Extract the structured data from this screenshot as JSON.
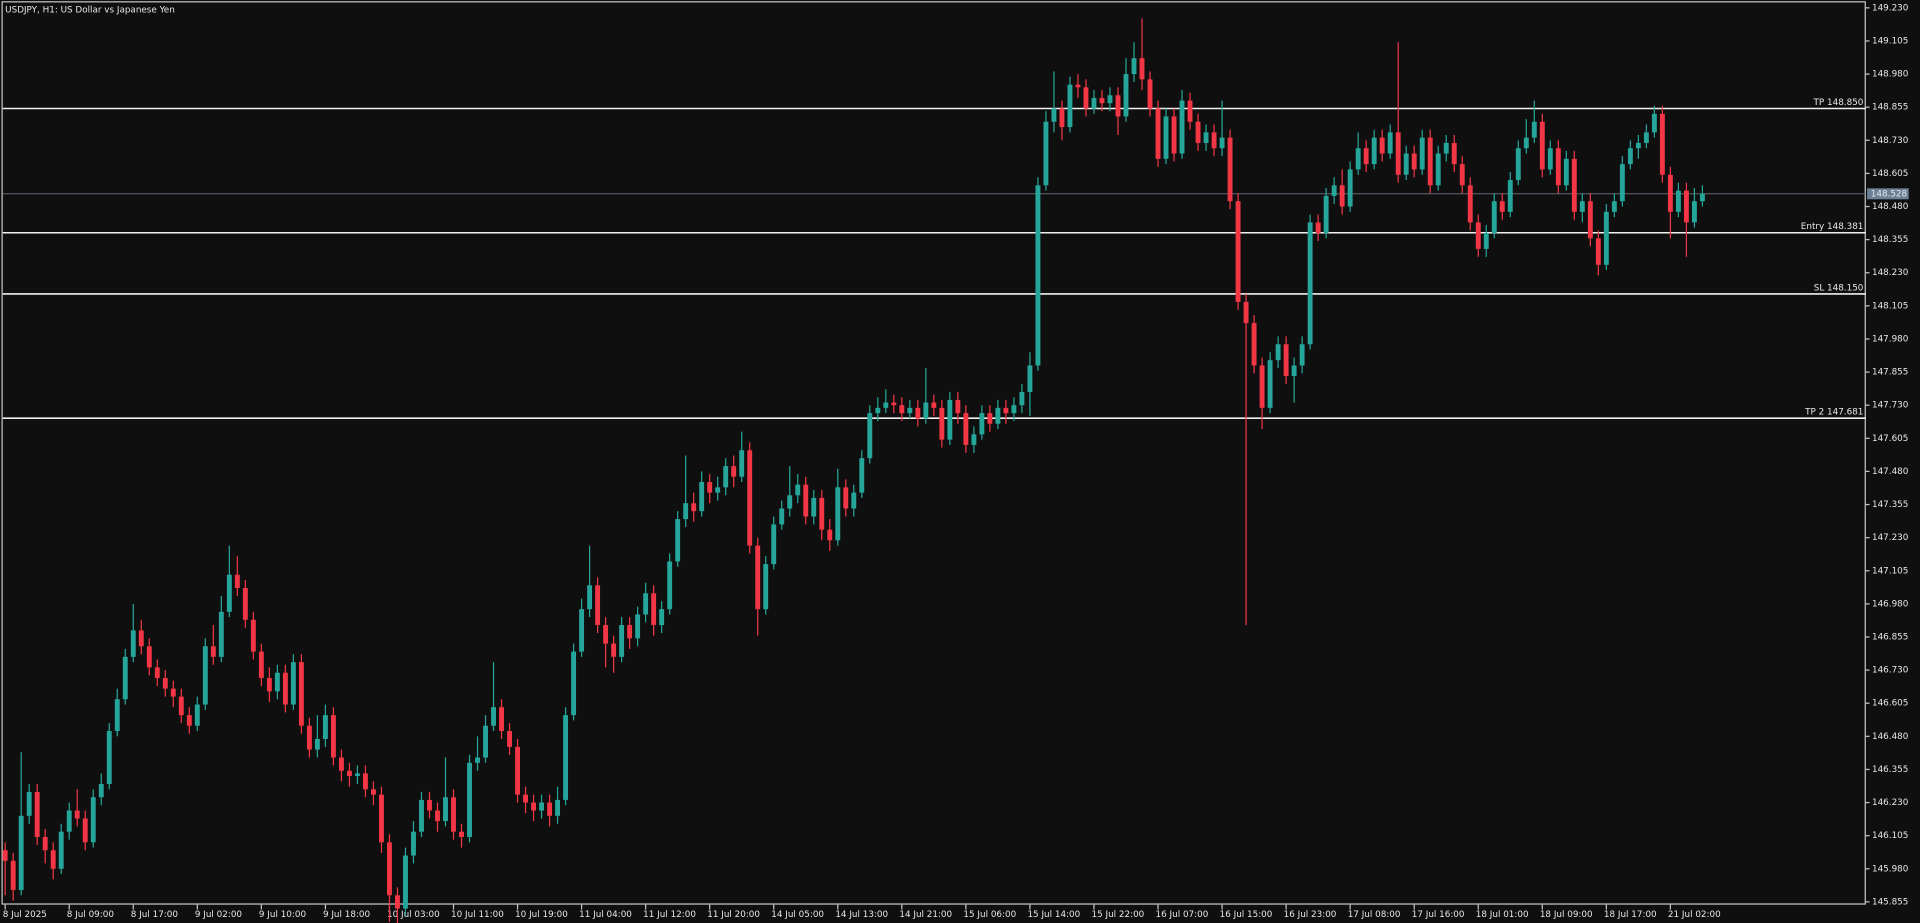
{
  "chart_data": {
    "type": "candlestick",
    "title": "USDJPY, H1:  US Dollar vs Japanese Yen",
    "up_color": "#26a69a",
    "down_color": "#f23645",
    "categories": [
      "8 Jul 2025",
      null,
      null,
      null,
      null,
      null,
      null,
      null,
      "8 Jul 09:00",
      null,
      null,
      null,
      null,
      null,
      null,
      null,
      "8 Jul 17:00",
      null,
      null,
      null,
      null,
      null,
      null,
      null,
      "9 Jul 02:00",
      null,
      null,
      null,
      null,
      null,
      null,
      null,
      "9 Jul 10:00",
      null,
      null,
      null,
      null,
      null,
      null,
      null,
      "9 Jul 18:00",
      null,
      null,
      null,
      null,
      null,
      null,
      null,
      "10 Jul 03:00",
      null,
      null,
      null,
      null,
      null,
      null,
      null,
      "10 Jul 11:00",
      null,
      null,
      null,
      null,
      null,
      null,
      null,
      "10 Jul 19:00",
      null,
      null,
      null,
      null,
      null,
      null,
      null,
      "11 Jul 04:00",
      null,
      null,
      null,
      null,
      null,
      null,
      null,
      "11 Jul 12:00",
      null,
      null,
      null,
      null,
      null,
      null,
      null,
      "11 Jul 20:00",
      null,
      null,
      null,
      null,
      null,
      null,
      null,
      "14 Jul 05:00",
      null,
      null,
      null,
      null,
      null,
      null,
      null,
      "14 Jul 13:00",
      null,
      null,
      null,
      null,
      null,
      null,
      null,
      "14 Jul 21:00",
      null,
      null,
      null,
      null,
      null,
      null,
      null,
      "15 Jul 06:00",
      null,
      null,
      null,
      null,
      null,
      null,
      null,
      "15 Jul 14:00",
      null,
      null,
      null,
      null,
      null,
      null,
      null,
      "15 Jul 22:00",
      null,
      null,
      null,
      null,
      null,
      null,
      null,
      "16 Jul 07:00",
      null,
      null,
      null,
      null,
      null,
      null,
      null,
      "16 Jul 15:00",
      null,
      null,
      null,
      null,
      null,
      null,
      null,
      "16 Jul 23:00",
      null,
      null,
      null,
      null,
      null,
      null,
      null,
      "17 Jul 08:00",
      null,
      null,
      null,
      null,
      null,
      null,
      null,
      "17 Jul 16:00",
      null,
      null,
      null,
      null,
      null,
      null,
      null,
      "18 Jul 01:00",
      null,
      null,
      null,
      null,
      null,
      null,
      null,
      "18 Jul 09:00",
      null,
      null,
      null,
      null,
      null,
      null,
      null,
      "18 Jul 17:00",
      null,
      null,
      null,
      null,
      null,
      null,
      null,
      "21 Jul 02:00",
      null,
      null,
      null,
      null
    ],
    "open": [
      146.05,
      146.01,
      145.9,
      146.18,
      146.27,
      146.1,
      146.05,
      145.98,
      146.12,
      146.2,
      146.17,
      146.08,
      146.25,
      146.3,
      146.5,
      146.62,
      146.78,
      146.88,
      146.82,
      146.74,
      146.7,
      146.66,
      146.63,
      146.56,
      146.52,
      146.6,
      146.82,
      146.78,
      146.95,
      147.09,
      147.04,
      146.92,
      146.8,
      146.7,
      146.65,
      146.72,
      146.6,
      146.76,
      146.52,
      146.43,
      146.47,
      146.56,
      146.4,
      146.35,
      146.33,
      146.34,
      146.28,
      146.26,
      146.08,
      145.88,
      145.83,
      146.03,
      146.12,
      146.24,
      146.2,
      146.16,
      146.25,
      146.12,
      146.1,
      146.38,
      146.4,
      146.52,
      146.59,
      146.5,
      146.44,
      146.26,
      146.23,
      146.2,
      146.23,
      146.18,
      146.24,
      146.56,
      146.8,
      146.96,
      147.05,
      146.9,
      146.83,
      146.78,
      146.9,
      146.85,
      146.94,
      147.02,
      146.9,
      146.96,
      147.14,
      147.3,
      147.36,
      147.33,
      147.44,
      147.4,
      147.42,
      147.5,
      147.46,
      147.56,
      147.2,
      146.96,
      147.13,
      147.28,
      147.34,
      147.39,
      147.43,
      147.31,
      147.38,
      147.26,
      147.22,
      147.42,
      147.34,
      147.4,
      147.53,
      147.7,
      147.72,
      147.74,
      147.73,
      147.7,
      147.72,
      147.68,
      147.74,
      147.72,
      147.6,
      147.75,
      147.7,
      147.58,
      147.62,
      147.7,
      147.66,
      147.72,
      147.7,
      147.73,
      147.78,
      147.88,
      148.56,
      148.8,
      148.85,
      148.78,
      148.94,
      148.93,
      148.85,
      148.89,
      148.87,
      148.9,
      148.82,
      148.98,
      149.04,
      148.96,
      148.85,
      148.66,
      148.82,
      148.68,
      148.88,
      148.8,
      148.72,
      148.76,
      148.7,
      148.74,
      148.5,
      148.12,
      148.04,
      147.88,
      147.72,
      147.9,
      147.96,
      147.84,
      147.88,
      147.96,
      148.42,
      148.38,
      148.52,
      148.56,
      148.48,
      148.62,
      148.7,
      148.64,
      148.74,
      148.68,
      148.76,
      148.6,
      148.68,
      148.62,
      148.74,
      148.56,
      148.68,
      148.72,
      148.64,
      148.56,
      148.42,
      148.32,
      148.38,
      148.5,
      148.46,
      148.58,
      148.7,
      148.74,
      148.8,
      148.62,
      148.7,
      148.56,
      148.66,
      148.46,
      148.5,
      148.36,
      148.26,
      148.46,
      148.5,
      148.64,
      148.7,
      148.72,
      148.76,
      148.83,
      148.6,
      148.46,
      148.54,
      148.42,
      148.5
    ],
    "high": [
      146.08,
      146.04,
      146.42,
      146.3,
      146.3,
      146.13,
      146.08,
      146.15,
      146.23,
      146.28,
      146.2,
      146.28,
      146.34,
      146.53,
      146.66,
      146.81,
      146.98,
      146.92,
      146.85,
      146.77,
      146.73,
      146.69,
      146.66,
      146.59,
      146.63,
      146.85,
      146.9,
      147.01,
      147.2,
      147.16,
      147.07,
      146.95,
      146.83,
      146.74,
      146.75,
      146.75,
      146.79,
      146.79,
      146.55,
      146.56,
      146.6,
      146.59,
      146.43,
      146.38,
      146.37,
      146.37,
      146.31,
      146.29,
      146.11,
      145.91,
      146.06,
      146.16,
      146.27,
      146.27,
      146.23,
      146.4,
      146.28,
      146.15,
      146.41,
      146.48,
      146.56,
      146.76,
      146.62,
      146.53,
      146.47,
      146.29,
      146.26,
      146.26,
      146.26,
      146.29,
      146.59,
      146.83,
      147.0,
      147.2,
      147.08,
      146.93,
      146.86,
      146.93,
      146.93,
      146.97,
      147.06,
      147.05,
      146.99,
      147.17,
      147.33,
      147.54,
      147.4,
      147.48,
      147.47,
      147.46,
      147.53,
      147.54,
      147.63,
      147.59,
      147.23,
      147.16,
      147.31,
      147.37,
      147.5,
      147.47,
      147.46,
      147.41,
      147.41,
      147.3,
      147.49,
      147.45,
      147.43,
      147.56,
      147.73,
      147.76,
      147.79,
      147.77,
      147.76,
      147.75,
      147.75,
      147.87,
      147.77,
      147.75,
      147.78,
      147.78,
      147.73,
      147.65,
      147.73,
      147.73,
      147.75,
      147.75,
      147.76,
      147.81,
      147.93,
      148.59,
      148.84,
      148.99,
      148.88,
      148.97,
      148.98,
      148.96,
      148.92,
      148.92,
      148.93,
      148.93,
      149.04,
      149.1,
      149.19,
      148.99,
      148.88,
      148.85,
      148.85,
      148.92,
      148.91,
      148.83,
      148.79,
      148.79,
      148.88,
      148.77,
      148.53,
      148.15,
      148.07,
      147.91,
      147.93,
      147.99,
      147.99,
      147.91,
      147.99,
      148.45,
      148.45,
      148.55,
      148.59,
      148.62,
      148.65,
      148.76,
      148.73,
      148.77,
      148.77,
      148.79,
      149.1,
      148.71,
      148.71,
      148.77,
      148.77,
      148.71,
      148.75,
      148.75,
      148.67,
      148.59,
      148.45,
      148.41,
      148.53,
      148.53,
      148.61,
      148.73,
      148.81,
      148.88,
      148.83,
      148.73,
      148.73,
      148.69,
      148.69,
      148.53,
      148.53,
      148.39,
      148.49,
      148.53,
      148.67,
      148.73,
      148.75,
      148.79,
      148.86,
      148.86,
      148.63,
      148.57,
      148.57,
      148.55,
      148.56
    ],
    "low": [
      145.88,
      145.86,
      145.88,
      146.15,
      146.07,
      146.0,
      145.94,
      145.96,
      146.09,
      146.14,
      146.05,
      146.06,
      146.22,
      146.28,
      146.48,
      146.6,
      146.76,
      146.79,
      146.71,
      146.67,
      146.63,
      146.59,
      146.53,
      146.49,
      146.5,
      146.58,
      146.75,
      146.76,
      146.93,
      147.01,
      146.89,
      146.77,
      146.67,
      146.61,
      146.62,
      146.57,
      146.58,
      146.49,
      146.4,
      146.4,
      146.44,
      146.37,
      146.31,
      146.29,
      146.3,
      146.25,
      146.22,
      146.04,
      145.78,
      145.77,
      145.8,
      146.0,
      146.1,
      146.17,
      146.12,
      146.14,
      146.09,
      146.06,
      146.08,
      146.35,
      146.38,
      146.5,
      146.47,
      146.41,
      146.23,
      146.19,
      146.16,
      146.17,
      146.14,
      146.15,
      146.22,
      146.54,
      146.78,
      146.93,
      146.87,
      146.74,
      146.72,
      146.76,
      146.81,
      146.82,
      146.91,
      146.86,
      146.87,
      146.94,
      147.12,
      147.27,
      147.29,
      147.31,
      147.36,
      147.37,
      147.39,
      147.42,
      147.44,
      147.17,
      146.86,
      146.94,
      147.11,
      147.26,
      147.31,
      147.36,
      147.28,
      147.28,
      147.22,
      147.18,
      147.2,
      147.31,
      147.31,
      147.38,
      147.51,
      147.67,
      147.7,
      147.7,
      147.67,
      147.68,
      147.65,
      147.66,
      147.69,
      147.57,
      147.58,
      147.66,
      147.55,
      147.55,
      147.6,
      147.63,
      147.64,
      147.66,
      147.67,
      147.7,
      147.69,
      147.86,
      148.54,
      148.76,
      148.73,
      148.76,
      148.89,
      148.82,
      148.83,
      148.84,
      148.84,
      148.75,
      148.8,
      148.95,
      148.92,
      148.82,
      148.63,
      148.64,
      148.65,
      148.66,
      148.77,
      148.69,
      148.69,
      148.67,
      148.67,
      148.47,
      148.09,
      146.9,
      147.85,
      147.64,
      147.7,
      147.87,
      147.81,
      147.74,
      147.85,
      147.94,
      148.35,
      148.36,
      148.49,
      148.45,
      148.46,
      148.6,
      148.61,
      148.62,
      148.65,
      148.66,
      148.57,
      148.58,
      148.59,
      148.6,
      148.53,
      148.54,
      148.65,
      148.61,
      148.53,
      148.39,
      148.29,
      148.29,
      148.36,
      148.43,
      148.44,
      148.56,
      148.68,
      148.72,
      148.59,
      148.6,
      148.53,
      148.54,
      148.43,
      148.42,
      148.33,
      148.22,
      148.24,
      148.44,
      148.48,
      148.62,
      148.66,
      148.7,
      148.74,
      148.57,
      148.36,
      148.44,
      148.29,
      148.4,
      148.48
    ],
    "close": [
      146.01,
      145.9,
      146.18,
      146.27,
      146.1,
      146.05,
      145.98,
      146.12,
      146.2,
      146.17,
      146.08,
      146.25,
      146.3,
      146.5,
      146.62,
      146.78,
      146.88,
      146.82,
      146.74,
      146.7,
      146.66,
      146.63,
      146.56,
      146.52,
      146.6,
      146.82,
      146.78,
      146.95,
      147.09,
      147.04,
      146.92,
      146.8,
      146.7,
      146.65,
      146.72,
      146.6,
      146.76,
      146.52,
      146.43,
      146.47,
      146.56,
      146.4,
      146.35,
      146.33,
      146.34,
      146.28,
      146.26,
      146.08,
      145.88,
      145.83,
      146.03,
      146.12,
      146.24,
      146.2,
      146.16,
      146.25,
      146.12,
      146.1,
      146.38,
      146.4,
      146.52,
      146.59,
      146.5,
      146.44,
      146.26,
      146.23,
      146.2,
      146.23,
      146.18,
      146.24,
      146.56,
      146.8,
      146.96,
      147.05,
      146.9,
      146.83,
      146.78,
      146.9,
      146.85,
      146.94,
      147.02,
      146.9,
      146.96,
      147.14,
      147.3,
      147.36,
      147.33,
      147.44,
      147.4,
      147.42,
      147.5,
      147.46,
      147.56,
      147.2,
      146.96,
      147.13,
      147.28,
      147.34,
      147.39,
      147.43,
      147.31,
      147.38,
      147.26,
      147.22,
      147.42,
      147.34,
      147.4,
      147.53,
      147.7,
      147.72,
      147.74,
      147.73,
      147.7,
      147.72,
      147.68,
      147.74,
      147.72,
      147.6,
      147.75,
      147.7,
      147.58,
      147.62,
      147.7,
      147.66,
      147.72,
      147.7,
      147.73,
      147.78,
      147.88,
      148.56,
      148.8,
      148.85,
      148.78,
      148.94,
      148.93,
      148.85,
      148.89,
      148.87,
      148.9,
      148.82,
      148.98,
      149.04,
      148.96,
      148.85,
      148.66,
      148.82,
      148.68,
      148.88,
      148.8,
      148.72,
      148.76,
      148.7,
      148.74,
      148.5,
      148.12,
      148.04,
      147.88,
      147.72,
      147.9,
      147.96,
      147.84,
      147.88,
      147.96,
      148.42,
      148.38,
      148.52,
      148.56,
      148.48,
      148.62,
      148.7,
      148.64,
      148.74,
      148.68,
      148.76,
      148.6,
      148.68,
      148.62,
      148.74,
      148.56,
      148.68,
      148.72,
      148.64,
      148.56,
      148.42,
      148.32,
      148.38,
      148.5,
      148.46,
      148.58,
      148.7,
      148.74,
      148.8,
      148.62,
      148.7,
      148.56,
      148.66,
      148.46,
      148.5,
      148.36,
      148.26,
      148.46,
      148.5,
      148.64,
      148.7,
      148.72,
      148.76,
      148.83,
      148.6,
      148.46,
      148.54,
      148.42,
      148.5,
      148.528
    ],
    "ylim": [
      145.84,
      149.255
    ],
    "yticks": [
      {
        "value": 149.23,
        "label": "149.230"
      },
      {
        "value": 149.105,
        "label": "149.105"
      },
      {
        "value": 148.98,
        "label": "148.980"
      },
      {
        "value": 148.855,
        "label": "148.855"
      },
      {
        "value": 148.73,
        "label": "148.730"
      },
      {
        "value": 148.605,
        "label": "148.605"
      },
      {
        "value": 148.48,
        "label": "148.480"
      },
      {
        "value": 148.355,
        "label": "148.355"
      },
      {
        "value": 148.23,
        "label": "148.230"
      },
      {
        "value": 148.105,
        "label": "148.105"
      },
      {
        "value": 147.98,
        "label": "147.980"
      },
      {
        "value": 147.855,
        "label": "147.855"
      },
      {
        "value": 147.73,
        "label": "147.730"
      },
      {
        "value": 147.605,
        "label": "147.605"
      },
      {
        "value": 147.48,
        "label": "147.480"
      },
      {
        "value": 147.355,
        "label": "147.355"
      },
      {
        "value": 147.23,
        "label": "147.230"
      },
      {
        "value": 147.105,
        "label": "147.105"
      },
      {
        "value": 146.98,
        "label": "146.980"
      },
      {
        "value": 146.855,
        "label": "146.855"
      },
      {
        "value": 146.73,
        "label": "146.730"
      },
      {
        "value": 146.605,
        "label": "146.605"
      },
      {
        "value": 146.48,
        "label": "146.480"
      },
      {
        "value": 146.355,
        "label": "146.355"
      },
      {
        "value": 146.23,
        "label": "146.230"
      },
      {
        "value": 146.105,
        "label": "146.105"
      },
      {
        "value": 145.98,
        "label": "145.980"
      },
      {
        "value": 145.855,
        "label": "145.855"
      }
    ],
    "levels": [
      {
        "label": "TP 148.850",
        "value": 148.85
      },
      {
        "label": "Entry 148.381",
        "value": 148.381
      },
      {
        "label": "SL 148.150",
        "value": 148.15
      },
      {
        "label": "TP 2 147.681",
        "value": 147.681
      }
    ],
    "last_price": 148.528,
    "grid": false
  }
}
